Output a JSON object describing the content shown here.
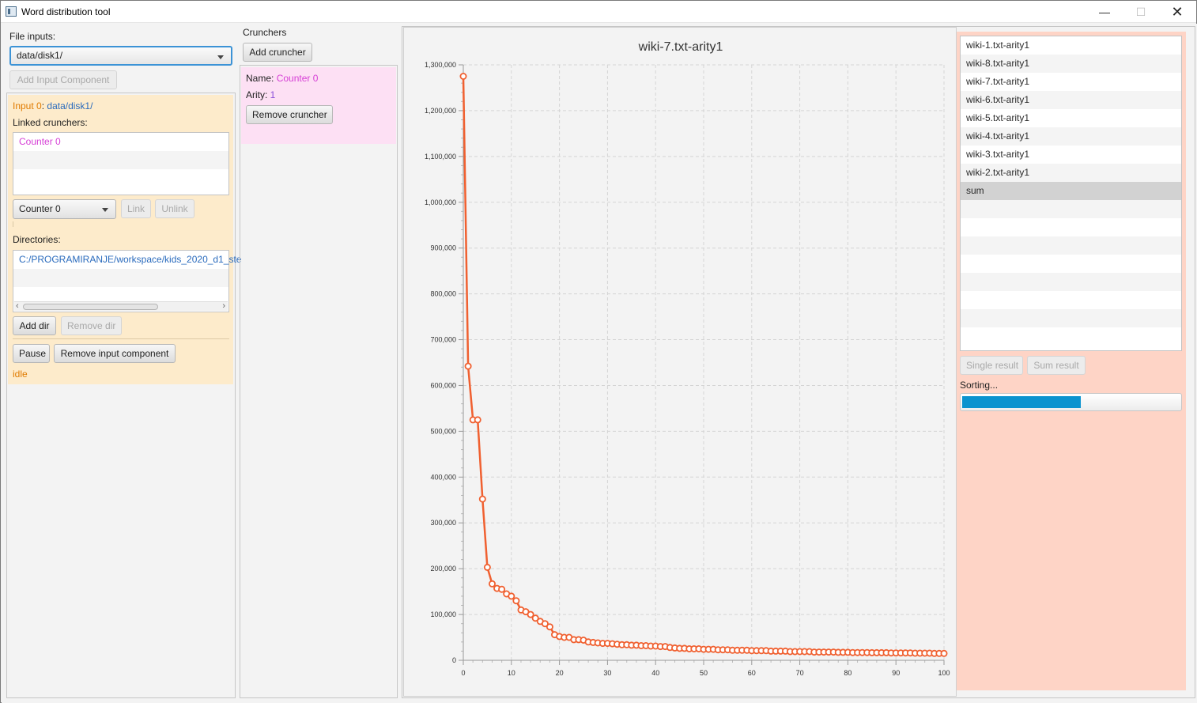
{
  "window": {
    "title": "Word distribution tool"
  },
  "inputs": {
    "section_label": "File inputs:",
    "combo_value": "data/disk1/",
    "add_button": "Add Input Component",
    "card": {
      "input_label": "Input 0",
      "separator": ":",
      "input_path": "data/disk1/",
      "linked_label": "Linked crunchers:",
      "linked_items": [
        "Counter 0"
      ],
      "cruncher_combo": "Counter 0",
      "link_button": "Link",
      "unlink_button": "Unlink",
      "directories_label": "Directories:",
      "directories": [
        "C:/PROGRAMIRANJE/workspace/kids_2020_d1_ste"
      ],
      "add_dir_button": "Add dir",
      "remove_dir_button": "Remove dir",
      "pause_button": "Pause",
      "remove_input_button": "Remove input component",
      "status": "idle"
    }
  },
  "crunchers": {
    "section_label": "Crunchers",
    "add_button": "Add cruncher",
    "card": {
      "name_label": "Name: ",
      "name_value": "Counter 0",
      "arity_label": "Arity: ",
      "arity_value": "1",
      "remove_button": "Remove cruncher"
    }
  },
  "results": {
    "items": [
      "wiki-1.txt-arity1",
      "wiki-8.txt-arity1",
      "wiki-7.txt-arity1",
      "wiki-6.txt-arity1",
      "wiki-5.txt-arity1",
      "wiki-4.txt-arity1",
      "wiki-3.txt-arity1",
      "wiki-2.txt-arity1",
      "sum"
    ],
    "selected_index": 8,
    "single_button": "Single result",
    "sum_button": "Sum result",
    "progress_label": "Sorting...",
    "progress": 0.54
  },
  "colors": {
    "series": "#f06030",
    "progress_fill": "#0a93cf",
    "input_card": "#fdebcb",
    "cruncher_card": "#fde0f4",
    "results_panel": "#fed4c6"
  },
  "chart_data": {
    "type": "line",
    "title": "wiki-7.txt-arity1",
    "xlabel": "",
    "ylabel": "",
    "xlim": [
      0,
      100
    ],
    "ylim": [
      0,
      1300000
    ],
    "x_ticks": [
      "0",
      "10",
      "20",
      "30",
      "40",
      "50",
      "60",
      "70",
      "80",
      "90",
      "100"
    ],
    "y_ticks": [
      "0",
      "100,000",
      "200,000",
      "300,000",
      "400,000",
      "500,000",
      "600,000",
      "700,000",
      "800,000",
      "900,000",
      "1,000,000",
      "1,100,000",
      "1,200,000",
      "1,300,000"
    ],
    "grid": true,
    "legend": "none",
    "series": [
      {
        "x": [
          0,
          1,
          2,
          3,
          4,
          5,
          6,
          7,
          8,
          9,
          10,
          11,
          12,
          13,
          14,
          15,
          16,
          17,
          18,
          19,
          20,
          21,
          22,
          23,
          24,
          25,
          26,
          27,
          28,
          29,
          30,
          31,
          32,
          33,
          34,
          35,
          36,
          37,
          38,
          39,
          40,
          41,
          42,
          43,
          44,
          45,
          46,
          47,
          48,
          49,
          50,
          51,
          52,
          53,
          54,
          55,
          56,
          57,
          58,
          59,
          60,
          61,
          62,
          63,
          64,
          65,
          66,
          67,
          68,
          69,
          70,
          71,
          72,
          73,
          74,
          75,
          76,
          77,
          78,
          79,
          80,
          81,
          82,
          83,
          84,
          85,
          86,
          87,
          88,
          89,
          90,
          91,
          92,
          93,
          94,
          95,
          96,
          97,
          98,
          99,
          100
        ],
        "values": [
          1275000,
          642000,
          525000,
          525000,
          352000,
          203000,
          167000,
          157000,
          155000,
          145000,
          140000,
          130000,
          110000,
          106000,
          100000,
          92000,
          85000,
          80000,
          73000,
          56000,
          52000,
          50000,
          50000,
          45000,
          45000,
          44000,
          40000,
          39000,
          38000,
          37000,
          37000,
          36000,
          35000,
          34000,
          34000,
          33000,
          33000,
          32000,
          32000,
          31000,
          31000,
          30000,
          30000,
          28000,
          27000,
          26000,
          26000,
          25000,
          25000,
          25000,
          24000,
          24000,
          24000,
          23000,
          23000,
          23000,
          22000,
          22000,
          22000,
          22000,
          21000,
          21000,
          21000,
          21000,
          20000,
          20000,
          20000,
          20000,
          19000,
          19000,
          19000,
          19000,
          19000,
          18000,
          18000,
          18000,
          18000,
          18000,
          17500,
          17500,
          17500,
          17000,
          17000,
          17000,
          17000,
          16500,
          16500,
          16500,
          16500,
          16000,
          16000,
          16000,
          16000,
          16000,
          15500,
          15500,
          15500,
          15500,
          15000,
          15000,
          15000
        ]
      }
    ]
  }
}
